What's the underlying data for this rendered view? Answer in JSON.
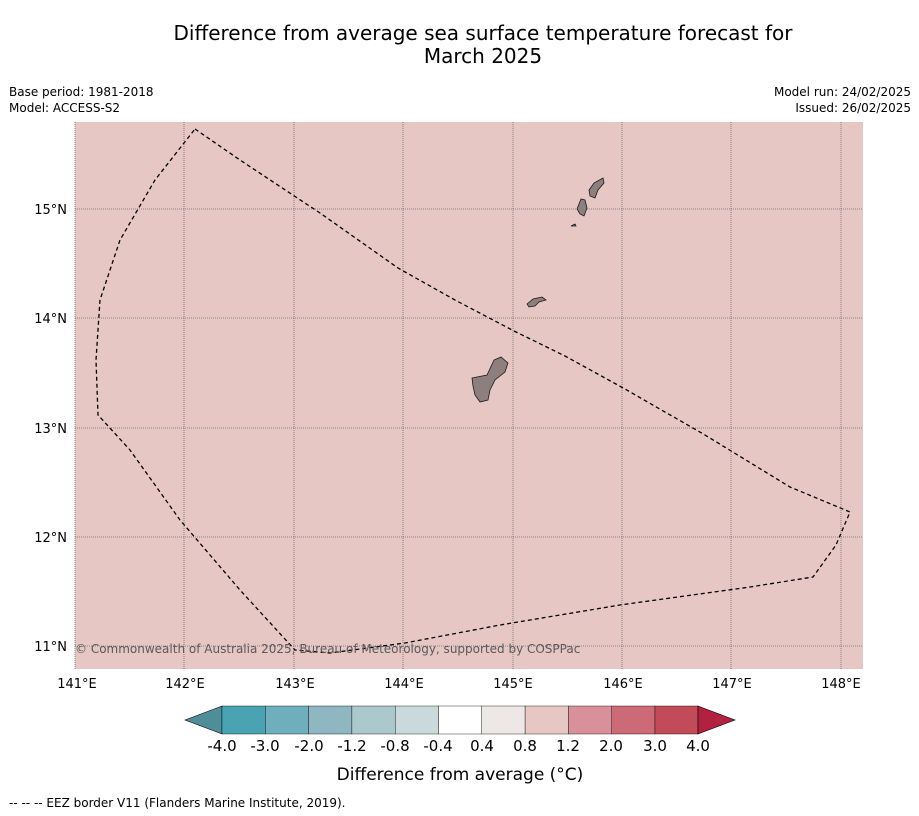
{
  "title_line1": "Difference from average sea surface temperature forecast for",
  "title_line2": "March 2025",
  "base_period": "Base period: 1981-2018",
  "model": "Model: ACCESS-S2",
  "model_run": "Model run: 24/02/2025",
  "issued": "Issued: 26/02/2025",
  "copyright": "© Commonwealth of Australia 2025, Bureau of Meteorology, supported by COSPPac",
  "map": {
    "background_color": "#e6c7c3",
    "lon_labels": [
      "141°E",
      "142°E",
      "143°E",
      "144°E",
      "145°E",
      "146°E",
      "147°E",
      "148°E"
    ],
    "lat_labels": [
      "15°N",
      "14°N",
      "13°N",
      "12°N",
      "11°N"
    ]
  },
  "colorbar": {
    "title": "Difference from average (°C)",
    "tick_labels": [
      "-4.0",
      "-3.0",
      "-2.0",
      "-1.2",
      "-0.8",
      "-0.4",
      "0.4",
      "0.8",
      "1.2",
      "2.0",
      "3.0",
      "4.0"
    ],
    "colors": [
      "#4e8e98",
      "#4aa3b3",
      "#6fafbd",
      "#8fb7c2",
      "#abc8cc",
      "#cad9dc",
      "#ffffff",
      "#ede8e6",
      "#e6c7c3",
      "#d8909a",
      "#cd6a77",
      "#c24b5a",
      "#b2213f"
    ]
  },
  "footer": "--  --  -- EEZ border V11 (Flanders Marine Institute, 2019)."
}
